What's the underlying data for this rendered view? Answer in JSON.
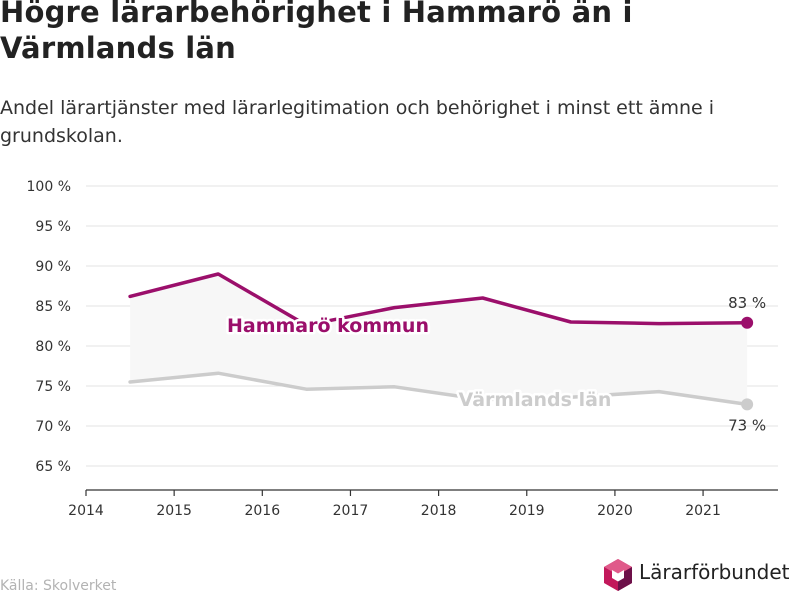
{
  "title": "Högre lärarbehörighet i Hammarö än i Värmlands län",
  "subtitle": "Andel lärartjänster med lärarlegitimation och behörighet i minst ett ämne i grundskolan.",
  "source": "Källa: Skolverket",
  "logo_text": "Lärarförbundet",
  "colors": {
    "hammaro": "#9b0f6b",
    "varmland": "#cccccc",
    "band": "#f7f7f7",
    "grid": "#e3e3e3",
    "logo_pink": "#c2185b",
    "logo_dark": "#6d1049"
  },
  "chart_data": {
    "type": "line",
    "x": [
      2014.5,
      2015.5,
      2016.5,
      2017.5,
      2018.5,
      2019.5,
      2020.5,
      2021.5
    ],
    "xlim": [
      2014,
      2021.85
    ],
    "ylim": [
      62,
      102
    ],
    "x_ticks": [
      2014,
      2015,
      2016,
      2017,
      2018,
      2019,
      2020,
      2021
    ],
    "y_ticks": [
      65,
      70,
      75,
      80,
      85,
      90,
      95,
      100
    ],
    "y_tick_suffix": " %",
    "series": [
      {
        "name": "Hammarö kommun",
        "values": [
          86.2,
          89.0,
          82.6,
          84.8,
          86.0,
          83.0,
          82.8,
          82.9
        ],
        "end_label": "83 %"
      },
      {
        "name": "Värmlands län",
        "values": [
          75.5,
          76.6,
          74.6,
          74.9,
          73.3,
          73.6,
          74.3,
          72.7
        ],
        "end_label": "73 %"
      }
    ],
    "grid": true
  }
}
